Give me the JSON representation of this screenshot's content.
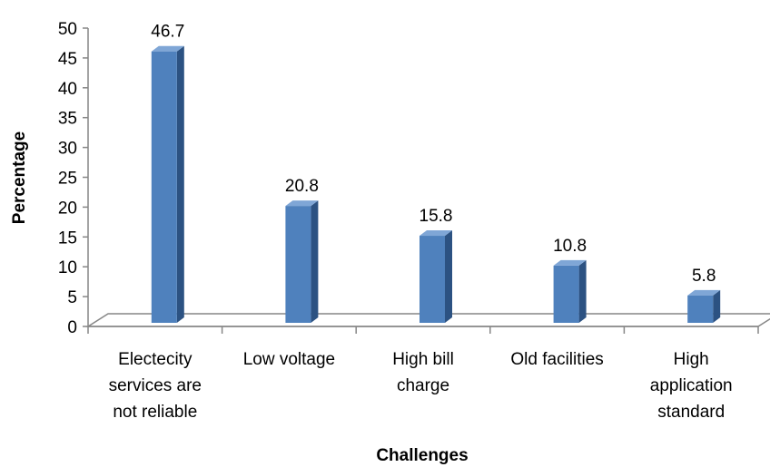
{
  "chart_data": {
    "type": "bar",
    "style": "3d-column",
    "title": "",
    "xlabel": "Challenges",
    "ylabel": "Percentage",
    "ylim": [
      0,
      50
    ],
    "yticks": [
      "0",
      "5",
      "10",
      "15",
      "20",
      "25",
      "30",
      "35",
      "40",
      "45",
      "50"
    ],
    "categories": [
      [
        "Electecity",
        "services are",
        "not reliable"
      ],
      [
        "Low voltage"
      ],
      [
        "High bill",
        "charge"
      ],
      [
        "Old facilities"
      ],
      [
        "High",
        "application",
        "standard"
      ]
    ],
    "values": [
      46.7,
      20.8,
      15.8,
      10.8,
      5.8
    ],
    "value_labels": [
      "46.7",
      "20.8",
      "15.8",
      "10.8",
      "5.8"
    ],
    "grid": false,
    "legend": "none",
    "colors": {
      "bar_front": "#4f81bd",
      "bar_side": "#2c5282",
      "bar_top": "#7fa6d6",
      "axis": "#868686"
    }
  }
}
